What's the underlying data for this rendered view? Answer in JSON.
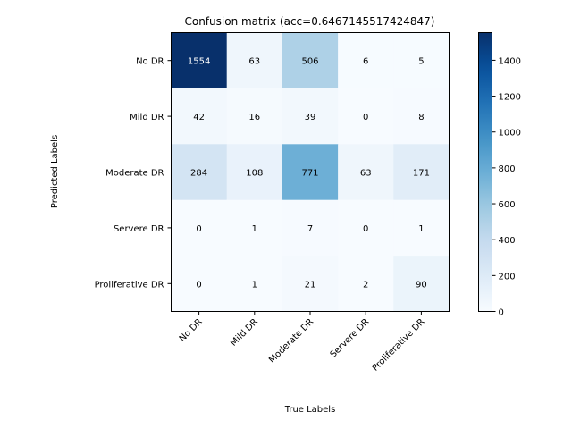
{
  "chart_data": {
    "type": "heatmap",
    "title": "Confusion matrix (acc=0.6467145517424847)",
    "xlabel": "True Labels",
    "ylabel": "Predicted Labels",
    "x_categories": [
      "No DR",
      "Mild DR",
      "Moderate DR",
      "Servere DR",
      "Proliferative DR"
    ],
    "y_categories": [
      "No DR",
      "Mild DR",
      "Moderate DR",
      "Servere DR",
      "Proliferative DR"
    ],
    "matrix": [
      [
        1554,
        63,
        506,
        6,
        5
      ],
      [
        42,
        16,
        39,
        0,
        8
      ],
      [
        284,
        108,
        771,
        63,
        171
      ],
      [
        0,
        1,
        7,
        0,
        1
      ],
      [
        0,
        1,
        21,
        2,
        90
      ]
    ],
    "colormap": "Blues",
    "value_range": [
      0,
      1554
    ],
    "colorbar": {
      "placement": "right",
      "ticks": [
        0,
        200,
        400,
        600,
        800,
        1000,
        1200,
        1400
      ]
    },
    "grid": false,
    "x_tick_rotation_deg": 45
  }
}
